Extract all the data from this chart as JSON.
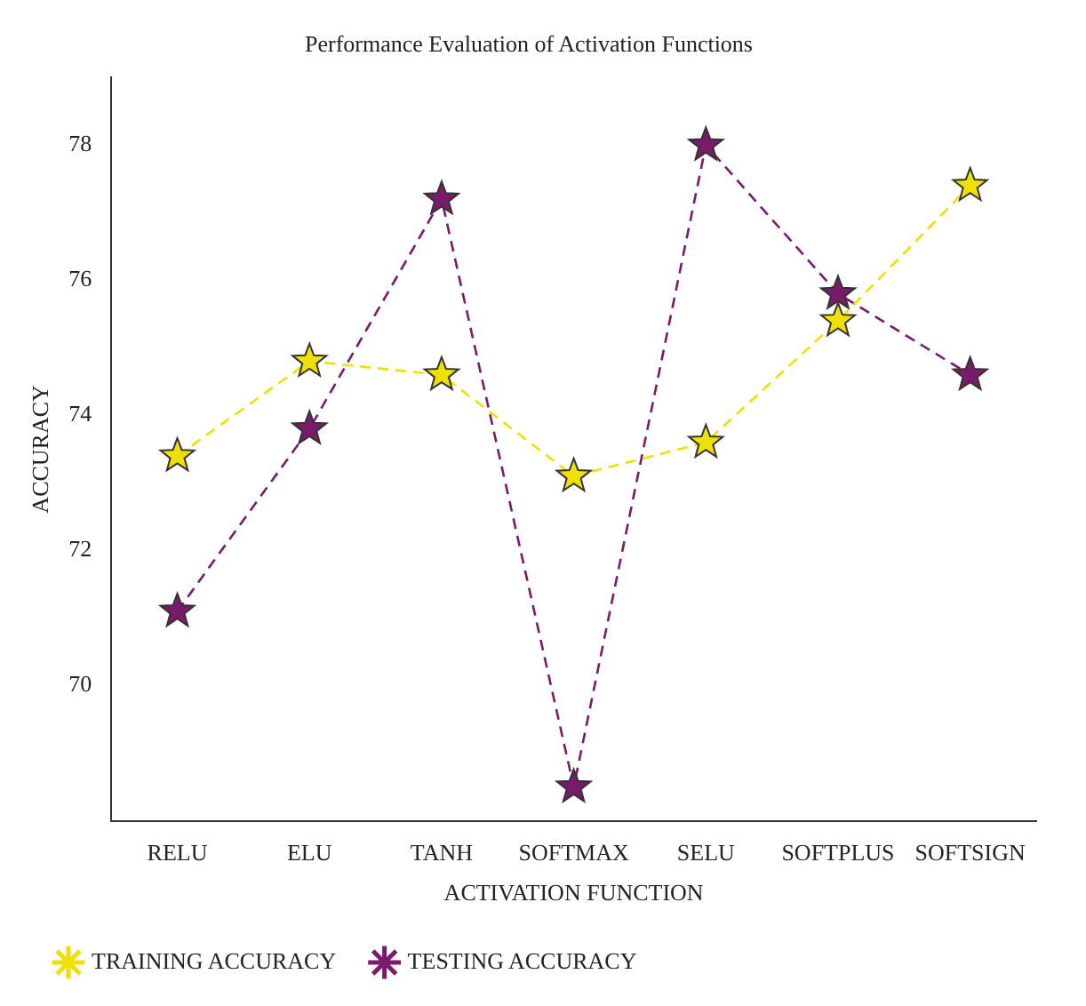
{
  "chart_data": {
    "type": "line",
    "title": "Performance Evaluation of Activation Functions",
    "xlabel": "ACTIVATION FUNCTION",
    "ylabel": "ACCURACY",
    "categories": [
      "RELU",
      "ELU",
      "TANH",
      "SOFTMAX",
      "SELU",
      "SOFTPLUS",
      "SOFTSIGN"
    ],
    "series": [
      {
        "name": "TRAINING ACCURACY",
        "color": "#f0e000",
        "values": [
          73.4,
          74.8,
          74.6,
          73.1,
          73.6,
          75.4,
          77.4
        ]
      },
      {
        "name": "TESTING ACCURACY",
        "color": "#7a1a6a",
        "values": [
          71.1,
          73.8,
          77.2,
          68.5,
          78.0,
          75.8,
          74.6
        ]
      }
    ],
    "ylim": [
      68,
      79
    ],
    "yticks": [
      70,
      72,
      74,
      76,
      78
    ],
    "grid": false,
    "legend": "bottom",
    "marker": "star",
    "line_style": "dashed"
  }
}
